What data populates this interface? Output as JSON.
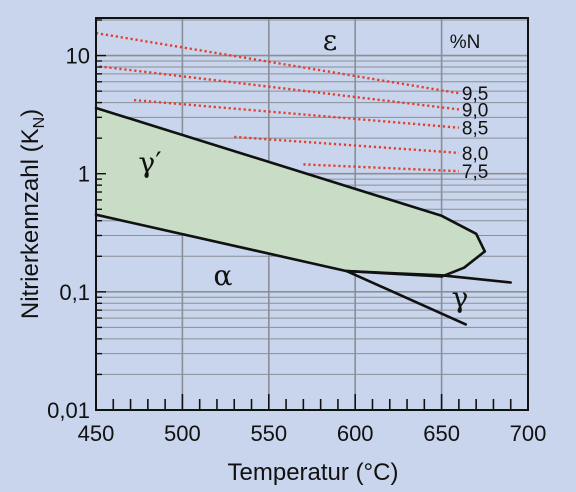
{
  "chart_data": {
    "type": "line",
    "xlabel": "Temperatur (°C)",
    "ylabel": "Nitrierkennzahl (K_N)",
    "ylabel_main": "Nitrierkennzahl  (K",
    "ylabel_sub": "N",
    "ylabel_close": ")",
    "xlim": [
      450,
      700
    ],
    "ylim": [
      0.01,
      20
    ],
    "yscale": "log",
    "x_ticks": [
      450,
      500,
      550,
      600,
      650,
      700
    ],
    "x_tick_labels": [
      "450",
      "500",
      "550",
      "600",
      "650",
      "700"
    ],
    "y_ticks": [
      0.01,
      0.1,
      1,
      10
    ],
    "y_tick_labels": [
      "0,01",
      "0,1",
      "1",
      "10"
    ],
    "grid": true,
    "colors": {
      "background": "#c9d5ec",
      "plot_area": "#c9d5ec",
      "grid": "#8a8f97",
      "gamma_prime_fill": "#c8dcc6",
      "phase_line": "#111111",
      "isoline": "#e0402c"
    },
    "phase_labels": {
      "epsilon": "ε",
      "gamma_prime": "γ′",
      "alpha": "α",
      "gamma": "γ"
    },
    "isoline_header": "%N",
    "gamma_prime_upper": {
      "x": [
        450,
        650,
        670,
        675
      ],
      "y": [
        3.6,
        0.44,
        0.31,
        0.22
      ]
    },
    "gamma_prime_lower": {
      "x": [
        450,
        595,
        650
      ],
      "y": [
        0.45,
        0.15,
        0.135
      ]
    },
    "gamma_prime_closing": {
      "x": [
        675,
        663,
        653,
        650
      ],
      "y": [
        0.22,
        0.16,
        0.14,
        0.135
      ]
    },
    "alpha_gamma_upper": {
      "x": [
        595,
        650,
        690
      ],
      "y": [
        0.15,
        0.138,
        0.12
      ]
    },
    "alpha_gamma_lower": {
      "x": [
        595,
        664
      ],
      "y": [
        0.15,
        0.053
      ]
    },
    "isolines": [
      {
        "label": "9,5",
        "x": [
          450,
          660
        ],
        "y": [
          15.5,
          4.8
        ]
      },
      {
        "label": "9,0",
        "x": [
          452,
          660
        ],
        "y": [
          8.1,
          3.5
        ]
      },
      {
        "label": "8,5",
        "x": [
          472,
          660
        ],
        "y": [
          4.2,
          2.45
        ]
      },
      {
        "label": "8,0",
        "x": [
          530,
          660
        ],
        "y": [
          2.05,
          1.5
        ]
      },
      {
        "label": "7,5",
        "x": [
          570,
          660
        ],
        "y": [
          1.2,
          1.05
        ]
      }
    ]
  }
}
